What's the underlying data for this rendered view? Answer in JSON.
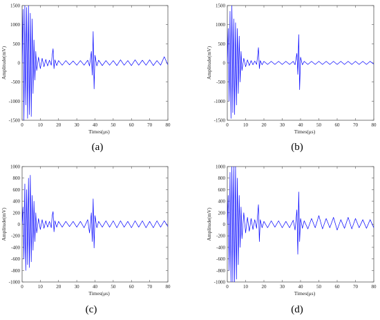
{
  "figure": {
    "panel_labels": [
      "(a)",
      "(b)",
      "(c)",
      "(d)"
    ]
  },
  "chart_data": [
    {
      "type": "line",
      "panel": "(a)",
      "xlabel": "Times(μs)",
      "ylabel": "Amplitude(mV)",
      "xlim": [
        0,
        80
      ],
      "ylim": [
        -1500,
        1500
      ],
      "xticks": [
        0,
        10,
        20,
        30,
        40,
        50,
        60,
        70,
        80
      ],
      "yticks": [
        -1500,
        -1000,
        -500,
        0,
        500,
        1000,
        1500
      ],
      "line_color": "#0000ff",
      "series": [
        {
          "x": [
            0,
            0.5,
            1,
            1.5,
            2,
            2.5,
            3,
            3.5,
            4,
            4.5,
            5,
            5.5,
            6,
            6.5,
            7,
            7.5,
            8,
            9,
            10,
            11,
            12,
            13,
            14,
            15,
            16,
            16.5,
            17,
            17.5,
            18,
            19,
            20,
            22,
            24,
            26,
            28,
            30,
            32,
            34,
            36,
            37,
            38,
            38.5,
            39,
            39.5,
            40,
            41,
            42,
            44,
            46,
            48,
            50,
            52,
            54,
            56,
            58,
            60,
            62,
            64,
            66,
            68,
            70,
            72,
            74,
            76,
            78,
            80
          ],
          "y": [
            0,
            1400,
            -1500,
            1500,
            -1100,
            1450,
            -1450,
            1500,
            -1350,
            1300,
            -1400,
            1150,
            -800,
            600,
            -450,
            300,
            -200,
            150,
            -150,
            120,
            -100,
            90,
            -80,
            70,
            -60,
            200,
            370,
            -150,
            80,
            -70,
            60,
            -60,
            60,
            -50,
            50,
            -60,
            60,
            -60,
            70,
            -80,
            300,
            -320,
            820,
            -680,
            200,
            -80,
            70,
            -70,
            60,
            -60,
            60,
            -70,
            80,
            -60,
            60,
            -70,
            80,
            -60,
            70,
            -60,
            80,
            -70,
            60,
            -60,
            160,
            -50
          ]
        }
      ]
    },
    {
      "type": "line",
      "panel": "(b)",
      "xlabel": "Times(μs)",
      "ylabel": "Amplitude(mV)",
      "xlim": [
        0,
        80
      ],
      "ylim": [
        -1500,
        1500
      ],
      "xticks": [
        0,
        10,
        20,
        30,
        40,
        50,
        60,
        70,
        80
      ],
      "yticks": [
        -1500,
        -1000,
        -500,
        0,
        500,
        1000,
        1500
      ],
      "line_color": "#0000ff",
      "series": [
        {
          "x": [
            0,
            0.5,
            1,
            1.5,
            2,
            2.5,
            3,
            3.5,
            4,
            4.5,
            5,
            5.5,
            6,
            6.5,
            7,
            7.5,
            8,
            9,
            10,
            11,
            12,
            13,
            14,
            15,
            16,
            16.5,
            17,
            17.5,
            18,
            19,
            20,
            22,
            24,
            26,
            28,
            30,
            32,
            34,
            36,
            37,
            38,
            38.5,
            39,
            39.5,
            40,
            41,
            42,
            44,
            46,
            48,
            50,
            52,
            54,
            56,
            58,
            60,
            62,
            64,
            66,
            68,
            70,
            72,
            74,
            76,
            78,
            80
          ],
          "y": [
            0,
            900,
            -1000,
            1350,
            -1450,
            1500,
            -1300,
            1150,
            -1350,
            1050,
            -1100,
            900,
            -800,
            700,
            -500,
            300,
            -200,
            120,
            -100,
            80,
            -70,
            60,
            -50,
            50,
            -40,
            150,
            400,
            -150,
            60,
            -50,
            40,
            -40,
            40,
            -40,
            40,
            -40,
            40,
            -40,
            40,
            -50,
            250,
            -300,
            740,
            -700,
            150,
            -50,
            40,
            -40,
            40,
            -40,
            40,
            -40,
            40,
            -40,
            40,
            -40,
            40,
            -40,
            40,
            -40,
            40,
            -40,
            40,
            -40,
            40,
            -30
          ]
        }
      ]
    },
    {
      "type": "line",
      "panel": "(c)",
      "xlabel": "Times(μs)",
      "ylabel": "Amplitude(mV)",
      "xlim": [
        0,
        80
      ],
      "ylim": [
        -1000,
        1000
      ],
      "xticks": [
        0,
        10,
        20,
        30,
        40,
        50,
        60,
        70,
        80
      ],
      "yticks": [
        -1000,
        -800,
        -600,
        -400,
        -200,
        0,
        200,
        400,
        600,
        800,
        1000
      ],
      "line_color": "#0000ff",
      "series": [
        {
          "x": [
            0,
            0.5,
            1,
            1.5,
            2,
            2.5,
            3,
            3.5,
            4,
            4.5,
            5,
            5.5,
            6,
            6.5,
            7,
            7.5,
            8,
            9,
            10,
            11,
            12,
            13,
            14,
            15,
            16,
            16.5,
            17,
            17.5,
            18,
            19,
            20,
            22,
            24,
            26,
            28,
            30,
            32,
            34,
            36,
            37,
            38,
            38.5,
            39,
            39.5,
            40,
            41,
            42,
            44,
            46,
            48,
            50,
            52,
            54,
            56,
            58,
            60,
            62,
            64,
            66,
            68,
            70,
            72,
            74,
            76,
            78,
            80
          ],
          "y": [
            0,
            300,
            -600,
            700,
            -800,
            600,
            -700,
            800,
            -750,
            850,
            -650,
            500,
            -450,
            400,
            -300,
            200,
            -150,
            100,
            -90,
            80,
            -70,
            60,
            -50,
            50,
            -60,
            150,
            220,
            -130,
            60,
            -50,
            50,
            -50,
            50,
            -40,
            50,
            -50,
            50,
            -60,
            80,
            -150,
            200,
            -300,
            440,
            -410,
            150,
            -60,
            50,
            -50,
            60,
            -50,
            60,
            -60,
            60,
            -50,
            50,
            -60,
            60,
            -50,
            60,
            -60,
            50,
            -60,
            60,
            -50,
            60,
            -40
          ]
        }
      ]
    },
    {
      "type": "line",
      "panel": "(d)",
      "xlabel": "Times(μs)",
      "ylabel": "Amplitude(mV)",
      "xlim": [
        0,
        80
      ],
      "ylim": [
        -1000,
        1000
      ],
      "xticks": [
        0,
        10,
        20,
        30,
        40,
        50,
        60,
        70,
        80
      ],
      "yticks": [
        -1000,
        -800,
        -600,
        -400,
        -200,
        0,
        200,
        400,
        600,
        800,
        1000
      ],
      "line_color": "#0000ff",
      "series": [
        {
          "x": [
            0,
            0.5,
            1,
            1.5,
            2,
            2.5,
            3,
            3.5,
            4,
            4.5,
            5,
            5.5,
            6,
            6.5,
            7,
            7.5,
            8,
            9,
            10,
            11,
            12,
            13,
            14,
            15,
            16,
            16.5,
            17,
            17.5,
            18,
            19,
            20,
            22,
            24,
            26,
            28,
            30,
            32,
            34,
            36,
            37,
            38,
            38.5,
            39,
            39.5,
            40,
            41,
            42,
            44,
            46,
            48,
            50,
            52,
            54,
            56,
            58,
            60,
            62,
            64,
            66,
            68,
            70,
            72,
            74,
            76,
            78,
            80
          ],
          "y": [
            0,
            500,
            -800,
            900,
            -1000,
            1000,
            -1000,
            1000,
            -1000,
            1000,
            -950,
            800,
            -700,
            500,
            -400,
            300,
            -250,
            200,
            -150,
            120,
            -120,
            100,
            -90,
            80,
            -70,
            150,
            340,
            -300,
            80,
            -60,
            50,
            -60,
            60,
            -50,
            60,
            -60,
            50,
            -60,
            70,
            -100,
            250,
            -520,
            560,
            -300,
            100,
            -70,
            60,
            -80,
            100,
            -60,
            150,
            -80,
            100,
            -60,
            120,
            -100,
            80,
            -70,
            120,
            -80,
            100,
            -60,
            80,
            -70,
            80,
            -60
          ]
        }
      ]
    }
  ]
}
